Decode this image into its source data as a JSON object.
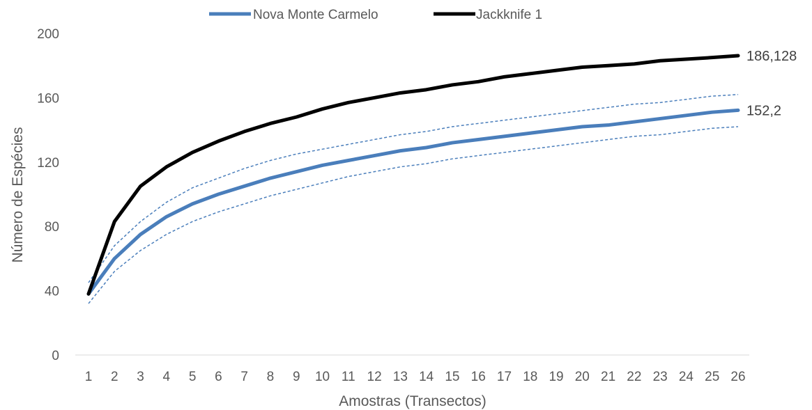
{
  "chart_data": {
    "type": "line",
    "xlabel": "Amostras (Transectos)",
    "ylabel": "Número de Espécies",
    "ylim": [
      0,
      200
    ],
    "yticks": [
      0,
      40,
      80,
      120,
      160,
      200
    ],
    "grid": false,
    "legend_position": "top",
    "categories": [
      "1",
      "2",
      "3",
      "4",
      "5",
      "6",
      "7",
      "8",
      "9",
      "10",
      "11",
      "12",
      "13",
      "14",
      "15",
      "16",
      "17",
      "18",
      "19",
      "20",
      "21",
      "22",
      "23",
      "24",
      "25",
      "26"
    ],
    "series": [
      {
        "name": "Nova Monte Carmelo",
        "color": "#4a7ebb",
        "style": "solid",
        "values": [
          38,
          60,
          75,
          86,
          94,
          100,
          105,
          110,
          114,
          118,
          121,
          124,
          127,
          129,
          132,
          134,
          136,
          138,
          140,
          142,
          143,
          145,
          147,
          149,
          151,
          152.2
        ],
        "end_label": "152,2"
      },
      {
        "name": "Jackknife 1",
        "color": "#000000",
        "style": "solid",
        "values": [
          38,
          83,
          105,
          117,
          126,
          133,
          139,
          144,
          148,
          153,
          157,
          160,
          163,
          165,
          168,
          170,
          173,
          175,
          177,
          179,
          180,
          181,
          183,
          184,
          185,
          186.128
        ],
        "end_label": "186,128"
      }
    ],
    "confidence_bands": [
      {
        "label": "upper",
        "color": "#4a7ebb",
        "style": "dashed",
        "values": [
          45,
          68,
          83,
          95,
          104,
          110,
          116,
          121,
          125,
          128,
          131,
          134,
          137,
          139,
          142,
          144,
          146,
          148,
          150,
          152,
          154,
          156,
          157,
          159,
          161,
          162
        ]
      },
      {
        "label": "lower",
        "color": "#4a7ebb",
        "style": "dashed",
        "values": [
          32,
          52,
          65,
          75,
          83,
          89,
          94,
          99,
          103,
          107,
          111,
          114,
          117,
          119,
          122,
          124,
          126,
          128,
          130,
          132,
          134,
          136,
          137,
          139,
          141,
          142
        ]
      }
    ]
  }
}
